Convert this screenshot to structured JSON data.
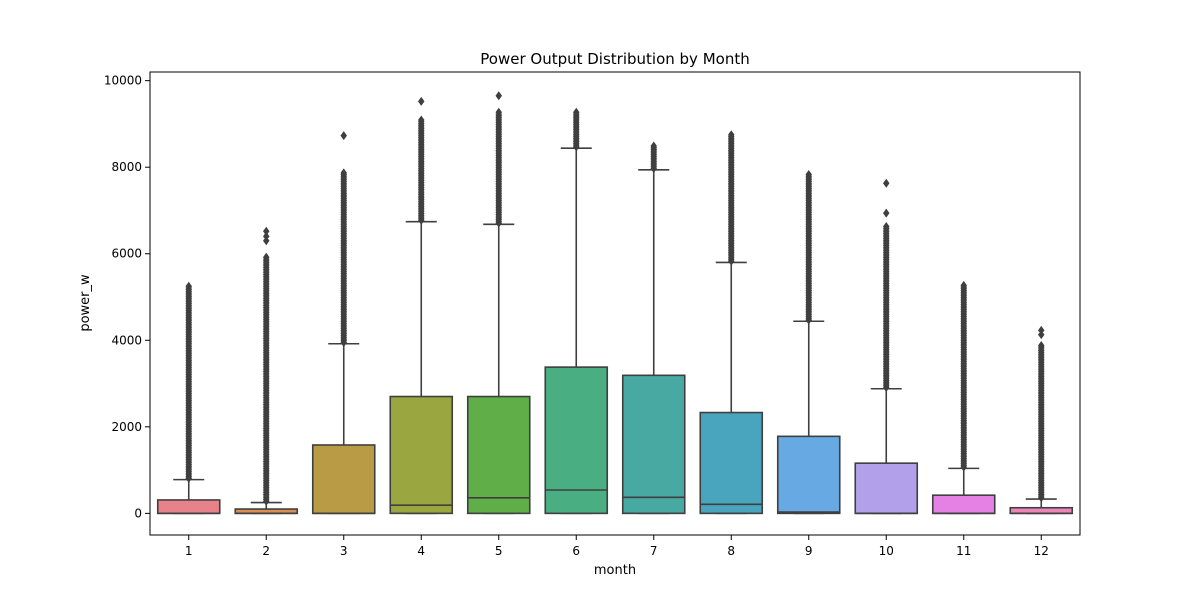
{
  "chart_data": {
    "type": "box",
    "title": "Power Output Distribution by Month",
    "xlabel": "month",
    "ylabel": "power_w",
    "ylim": [
      -500,
      10200
    ],
    "yticks": [
      0,
      2000,
      4000,
      6000,
      8000,
      10000
    ],
    "grid": false,
    "categories": [
      "1",
      "2",
      "3",
      "4",
      "5",
      "6",
      "7",
      "8",
      "9",
      "10",
      "11",
      "12"
    ],
    "colors": [
      "#e8828a",
      "#d98f52",
      "#b99b45",
      "#9aa63f",
      "#5fae48",
      "#4aae83",
      "#47a9a2",
      "#49a5bd",
      "#67a9e2",
      "#b2a1ea",
      "#e581e4",
      "#ee85b9"
    ],
    "boxes": [
      {
        "q1": 0,
        "median": 0,
        "q3": 310,
        "whisker_low": 0,
        "whisker_high": 780,
        "outliers_from": 780,
        "outliers_to": 5250,
        "extra_outliers": []
      },
      {
        "q1": 0,
        "median": 0,
        "q3": 100,
        "whisker_low": 0,
        "whisker_high": 250,
        "outliers_from": 250,
        "outliers_to": 5950,
        "extra_outliers": [
          6300,
          6400,
          6520
        ]
      },
      {
        "q1": 0,
        "median": 0,
        "q3": 1580,
        "whisker_low": 0,
        "whisker_high": 3920,
        "outliers_from": 3920,
        "outliers_to": 7900,
        "extra_outliers": [
          8730
        ]
      },
      {
        "q1": 0,
        "median": 190,
        "q3": 2700,
        "whisker_low": 0,
        "whisker_high": 6740,
        "outliers_from": 6740,
        "outliers_to": 9120,
        "extra_outliers": [
          9520
        ]
      },
      {
        "q1": 0,
        "median": 360,
        "q3": 2700,
        "whisker_low": 0,
        "whisker_high": 6680,
        "outliers_from": 6680,
        "outliers_to": 9280,
        "extra_outliers": [
          9650
        ]
      },
      {
        "q1": 0,
        "median": 540,
        "q3": 3380,
        "whisker_low": 0,
        "whisker_high": 8440,
        "outliers_from": 8440,
        "outliers_to": 9270,
        "extra_outliers": []
      },
      {
        "q1": 0,
        "median": 370,
        "q3": 3190,
        "whisker_low": 0,
        "whisker_high": 7940,
        "outliers_from": 7940,
        "outliers_to": 8500,
        "extra_outliers": []
      },
      {
        "q1": 0,
        "median": 210,
        "q3": 2330,
        "whisker_low": 0,
        "whisker_high": 5800,
        "outliers_from": 5800,
        "outliers_to": 8780,
        "extra_outliers": []
      },
      {
        "q1": 0,
        "median": 30,
        "q3": 1780,
        "whisker_low": 0,
        "whisker_high": 4440,
        "outliers_from": 4440,
        "outliers_to": 7860,
        "extra_outliers": []
      },
      {
        "q1": 0,
        "median": 0,
        "q3": 1160,
        "whisker_low": 0,
        "whisker_high": 2880,
        "outliers_from": 2880,
        "outliers_to": 6650,
        "extra_outliers": [
          6940,
          7630
        ]
      },
      {
        "q1": 0,
        "median": 0,
        "q3": 420,
        "whisker_low": 0,
        "whisker_high": 1040,
        "outliers_from": 1040,
        "outliers_to": 5300,
        "extra_outliers": []
      },
      {
        "q1": 0,
        "median": 0,
        "q3": 130,
        "whisker_low": 0,
        "whisker_high": 330,
        "outliers_from": 330,
        "outliers_to": 3880,
        "extra_outliers": [
          4130,
          4230
        ]
      }
    ]
  }
}
